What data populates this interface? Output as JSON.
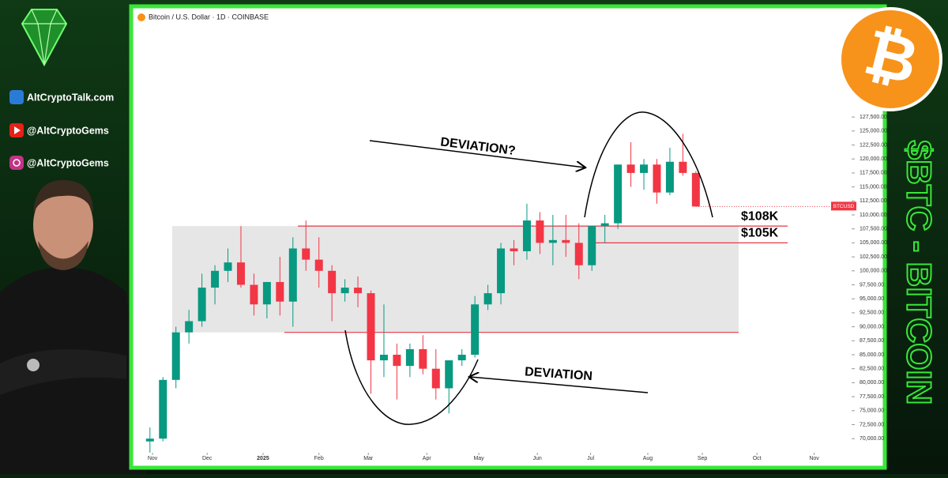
{
  "brand": {
    "website": "AltCryptoTalk.com",
    "youtube": "@AltCryptoGems",
    "instagram": "@AltCryptoGems",
    "side_title": "$BTC - BITCOIN",
    "logo_symbol": "₿"
  },
  "chart_data": {
    "type": "candlestick",
    "title": "Bitcoin / U.S. Dollar · 1D · COINBASE",
    "symbol": "BTCUSD",
    "categories": [
      null,
      null,
      null,
      null,
      null,
      null,
      null,
      null,
      null,
      null,
      null,
      null,
      null,
      null,
      null,
      null,
      null,
      null,
      null,
      null,
      null,
      null,
      null,
      null,
      null,
      null,
      null,
      null,
      null,
      null,
      null,
      null,
      null,
      null,
      null,
      null,
      null,
      null,
      null,
      null,
      null,
      null,
      null
    ],
    "open": [
      69500,
      70000,
      80500,
      89000,
      91000,
      97000,
      100000,
      101500,
      97500,
      94000,
      98000,
      94500,
      104000,
      102000,
      100000,
      96000,
      97000,
      96000,
      84000,
      85000,
      83000,
      86000,
      82500,
      79000,
      84000,
      85000,
      94000,
      96000,
      104000,
      103500,
      109000,
      105000,
      105500,
      105000,
      101000,
      108000,
      108500,
      119000,
      117500,
      119000,
      114000,
      119500,
      117500
    ],
    "high": [
      72000,
      81000,
      90000,
      93000,
      99500,
      101000,
      104000,
      108000,
      99500,
      98000,
      102500,
      106000,
      109000,
      106000,
      101000,
      98500,
      99000,
      96500,
      94000,
      87000,
      87000,
      88500,
      86000,
      84000,
      86000,
      95500,
      97500,
      105000,
      105500,
      112000,
      110500,
      110000,
      110000,
      108500,
      108000,
      110000,
      119000,
      123000,
      120000,
      120000,
      122000,
      124500,
      117800
    ],
    "low": [
      67500,
      69500,
      79000,
      87000,
      90000,
      94000,
      98000,
      97000,
      92000,
      91500,
      92000,
      90000,
      100000,
      97000,
      91000,
      94500,
      93500,
      78000,
      81000,
      77000,
      81000,
      81500,
      77000,
      74500,
      83000,
      84500,
      93000,
      94000,
      101000,
      102000,
      103000,
      101000,
      102500,
      98500,
      100000,
      105000,
      107500,
      115000,
      114500,
      112000,
      113500,
      117000,
      111500
    ],
    "close": [
      70000,
      80500,
      89000,
      91000,
      97000,
      100000,
      101500,
      97500,
      94000,
      98000,
      94500,
      104000,
      102000,
      100000,
      96000,
      97000,
      96000,
      84000,
      85000,
      83000,
      86000,
      82500,
      79000,
      84000,
      85000,
      94000,
      96000,
      104000,
      103500,
      109000,
      105000,
      105500,
      105000,
      101000,
      108000,
      108500,
      119000,
      117500,
      119000,
      114000,
      119500,
      117500,
      111500
    ],
    "up_color": "#089981",
    "down_color": "#f23645",
    "xlim": [
      -0.9,
      53.8
    ],
    "xticks": [
      {
        "value": 0.2,
        "label": "Nov"
      },
      {
        "value": 4.4,
        "label": "Dec"
      },
      {
        "value": 8.7,
        "label": "2025"
      },
      {
        "value": 13,
        "label": "Feb"
      },
      {
        "value": 16.8,
        "label": "Mar"
      },
      {
        "value": 21.3,
        "label": "Apr"
      },
      {
        "value": 25.3,
        "label": "May"
      },
      {
        "value": 29.8,
        "label": "Jun"
      },
      {
        "value": 33.9,
        "label": "Jul"
      },
      {
        "value": 38.3,
        "label": "Aug"
      },
      {
        "value": 42.5,
        "label": "Sep"
      },
      {
        "value": 46.7,
        "label": "Oct"
      },
      {
        "value": 51.1,
        "label": "Nov"
      }
    ],
    "ylim": [
      67200,
      146300
    ],
    "yticks": [
      {
        "value": 70000,
        "label": "70,000.00"
      },
      {
        "value": 72500,
        "label": "72,500.00"
      },
      {
        "value": 75000,
        "label": "75,000.00"
      },
      {
        "value": 77500,
        "label": "77,500.00"
      },
      {
        "value": 80000,
        "label": "80,000.00"
      },
      {
        "value": 82500,
        "label": "82,500.00"
      },
      {
        "value": 85000,
        "label": "85,000.00"
      },
      {
        "value": 87500,
        "label": "87,500.00"
      },
      {
        "value": 90000,
        "label": "90,000.00"
      },
      {
        "value": 92500,
        "label": "92,500.00"
      },
      {
        "value": 95000,
        "label": "95,000.00"
      },
      {
        "value": 97500,
        "label": "97,500.00"
      },
      {
        "value": 100000,
        "label": "100,000.00"
      },
      {
        "value": 102500,
        "label": "102,500.00"
      },
      {
        "value": 105000,
        "label": "105,000.00"
      },
      {
        "value": 107500,
        "label": "107,500.00"
      },
      {
        "value": 110000,
        "label": "110,000.00"
      },
      {
        "value": 112500,
        "label": "112,500.00"
      },
      {
        "value": 115000,
        "label": "115,000.00"
      },
      {
        "value": 117500,
        "label": "117,500.00"
      },
      {
        "value": 120000,
        "label": "120,000.00"
      },
      {
        "value": 122500,
        "label": "122,500.00"
      },
      {
        "value": 125000,
        "label": "125,000.00"
      },
      {
        "value": 127500,
        "label": "127,500.00"
      }
    ],
    "zone": [
      89000,
      108000
    ],
    "levels": [
      {
        "value": 108000,
        "label": "$108K"
      },
      {
        "value": 105000,
        "label": "$105K"
      }
    ],
    "level_color": "#e53945",
    "annotations": [
      "DEVIATION?",
      "DEVIATION"
    ]
  }
}
